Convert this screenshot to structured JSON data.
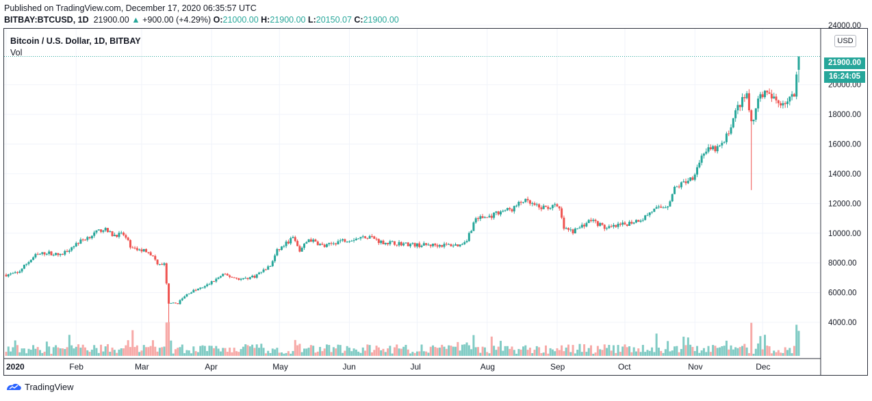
{
  "header": {
    "published": "Published on TradingView.com, December 17, 2020 06:35:57 UTC",
    "symbol": "BITBAY:BTCUSD, 1D",
    "last": "21900.00",
    "change": "+900.00 (+4.29%)",
    "o_label": "O:",
    "o": "21000.00",
    "h_label": "H:",
    "h": "21900.00",
    "l_label": "L:",
    "l": "20150.07",
    "c_label": "C:",
    "c": "21900.00"
  },
  "legend": {
    "title": "Bitcoin / U.S. Dollar, 1D, BITBAY",
    "volume": "Vol"
  },
  "price_axis": {
    "currency": "USD",
    "last_price_tag": "21900.00",
    "countdown_tag": "16:24:05"
  },
  "footer": {
    "brand": "TradingView"
  },
  "colors": {
    "up": "#26a69a",
    "down": "#ef5350",
    "up_vol": "#80cbc4",
    "down_vol": "#f7a9a7",
    "grid": "#f0f3fa"
  },
  "chart_data": {
    "type": "candlestick",
    "x_axis": {
      "start": "2020-01-01",
      "end": "2020-12-17",
      "tick_labels": [
        "2020",
        "Feb",
        "Mar",
        "Apr",
        "May",
        "Jun",
        "Jul",
        "Aug",
        "Sep",
        "Oct",
        "Nov",
        "Dec"
      ]
    },
    "y_axis": {
      "ylim": [
        2300,
        24300
      ],
      "tick_labels": [
        "24000.00",
        "20000.00",
        "18000.00",
        "16000.00",
        "14000.00",
        "12000.00",
        "10000.00",
        "8000.00",
        "6000.00",
        "4000.00"
      ],
      "tick_values": [
        24000,
        20000,
        18000,
        16000,
        14000,
        12000,
        10000,
        8000,
        6000,
        4000
      ]
    },
    "close_anchors": [
      {
        "date": "2020-01-01",
        "close": 7200
      },
      {
        "date": "2020-01-06",
        "close": 7300
      },
      {
        "date": "2020-01-10",
        "close": 7950
      },
      {
        "date": "2020-01-14",
        "close": 8500
      },
      {
        "date": "2020-01-19",
        "close": 8700
      },
      {
        "date": "2020-01-25",
        "close": 8500
      },
      {
        "date": "2020-02-01",
        "close": 9300
      },
      {
        "date": "2020-02-07",
        "close": 9800
      },
      {
        "date": "2020-02-13",
        "close": 10300
      },
      {
        "date": "2020-02-17",
        "close": 9900
      },
      {
        "date": "2020-02-22",
        "close": 9900
      },
      {
        "date": "2020-02-26",
        "close": 8900
      },
      {
        "date": "2020-03-04",
        "close": 8800
      },
      {
        "date": "2020-03-08",
        "close": 8000
      },
      {
        "date": "2020-03-11",
        "close": 7900
      },
      {
        "date": "2020-03-13",
        "close": 5200
      },
      {
        "date": "2020-03-17",
        "close": 5300
      },
      {
        "date": "2020-03-22",
        "close": 6000
      },
      {
        "date": "2020-03-29",
        "close": 6400
      },
      {
        "date": "2020-04-06",
        "close": 7200
      },
      {
        "date": "2020-04-14",
        "close": 6900
      },
      {
        "date": "2020-04-20",
        "close": 7100
      },
      {
        "date": "2020-04-27",
        "close": 7800
      },
      {
        "date": "2020-04-30",
        "close": 8800
      },
      {
        "date": "2020-05-07",
        "close": 9700
      },
      {
        "date": "2020-05-10",
        "close": 8800
      },
      {
        "date": "2020-05-14",
        "close": 9600
      },
      {
        "date": "2020-05-21",
        "close": 9100
      },
      {
        "date": "2020-05-28",
        "close": 9500
      },
      {
        "date": "2020-06-02",
        "close": 9600
      },
      {
        "date": "2020-06-10",
        "close": 9800
      },
      {
        "date": "2020-06-15",
        "close": 9400
      },
      {
        "date": "2020-06-24",
        "close": 9300
      },
      {
        "date": "2020-07-01",
        "close": 9200
      },
      {
        "date": "2020-07-10",
        "close": 9200
      },
      {
        "date": "2020-07-20",
        "close": 9200
      },
      {
        "date": "2020-07-23",
        "close": 9600
      },
      {
        "date": "2020-07-27",
        "close": 11000
      },
      {
        "date": "2020-08-02",
        "close": 11100
      },
      {
        "date": "2020-08-07",
        "close": 11500
      },
      {
        "date": "2020-08-12",
        "close": 11600
      },
      {
        "date": "2020-08-17",
        "close": 12200
      },
      {
        "date": "2020-08-24",
        "close": 11700
      },
      {
        "date": "2020-08-31",
        "close": 11800
      },
      {
        "date": "2020-09-02",
        "close": 11600
      },
      {
        "date": "2020-09-04",
        "close": 10300
      },
      {
        "date": "2020-09-08",
        "close": 10100
      },
      {
        "date": "2020-09-16",
        "close": 10900
      },
      {
        "date": "2020-09-23",
        "close": 10300
      },
      {
        "date": "2020-10-01",
        "close": 10600
      },
      {
        "date": "2020-10-09",
        "close": 11000
      },
      {
        "date": "2020-10-13",
        "close": 11500
      },
      {
        "date": "2020-10-20",
        "close": 11900
      },
      {
        "date": "2020-10-23",
        "close": 13000
      },
      {
        "date": "2020-10-31",
        "close": 13800
      },
      {
        "date": "2020-11-05",
        "close": 15500
      },
      {
        "date": "2020-11-11",
        "close": 15700
      },
      {
        "date": "2020-11-14",
        "close": 16100
      },
      {
        "date": "2020-11-20",
        "close": 18500
      },
      {
        "date": "2020-11-24",
        "close": 19300
      },
      {
        "date": "2020-11-26",
        "close": 17300
      },
      {
        "date": "2020-11-30",
        "close": 19500
      },
      {
        "date": "2020-12-03",
        "close": 19300
      },
      {
        "date": "2020-12-08",
        "close": 18800
      },
      {
        "date": "2020-12-12",
        "close": 18900
      },
      {
        "date": "2020-12-15",
        "close": 19300
      },
      {
        "date": "2020-12-16",
        "close": 21000
      },
      {
        "date": "2020-12-17",
        "close": 21900
      }
    ],
    "extreme_lows": [
      {
        "date": "2020-03-13",
        "low": 3850
      },
      {
        "date": "2020-11-26",
        "low": 12900
      }
    ],
    "last_candle": {
      "date": "2020-12-17",
      "open": 21000,
      "high": 21900,
      "low": 20150.07,
      "close": 21900
    },
    "volume_spikes": [
      {
        "date": "2020-02-26",
        "direction": "up"
      },
      {
        "date": "2020-03-12",
        "direction": "down"
      },
      {
        "date": "2020-03-13",
        "direction": "down"
      },
      {
        "date": "2020-11-26",
        "direction": "down"
      },
      {
        "date": "2020-12-16",
        "direction": "up"
      },
      {
        "date": "2020-12-17",
        "direction": "up"
      }
    ]
  }
}
